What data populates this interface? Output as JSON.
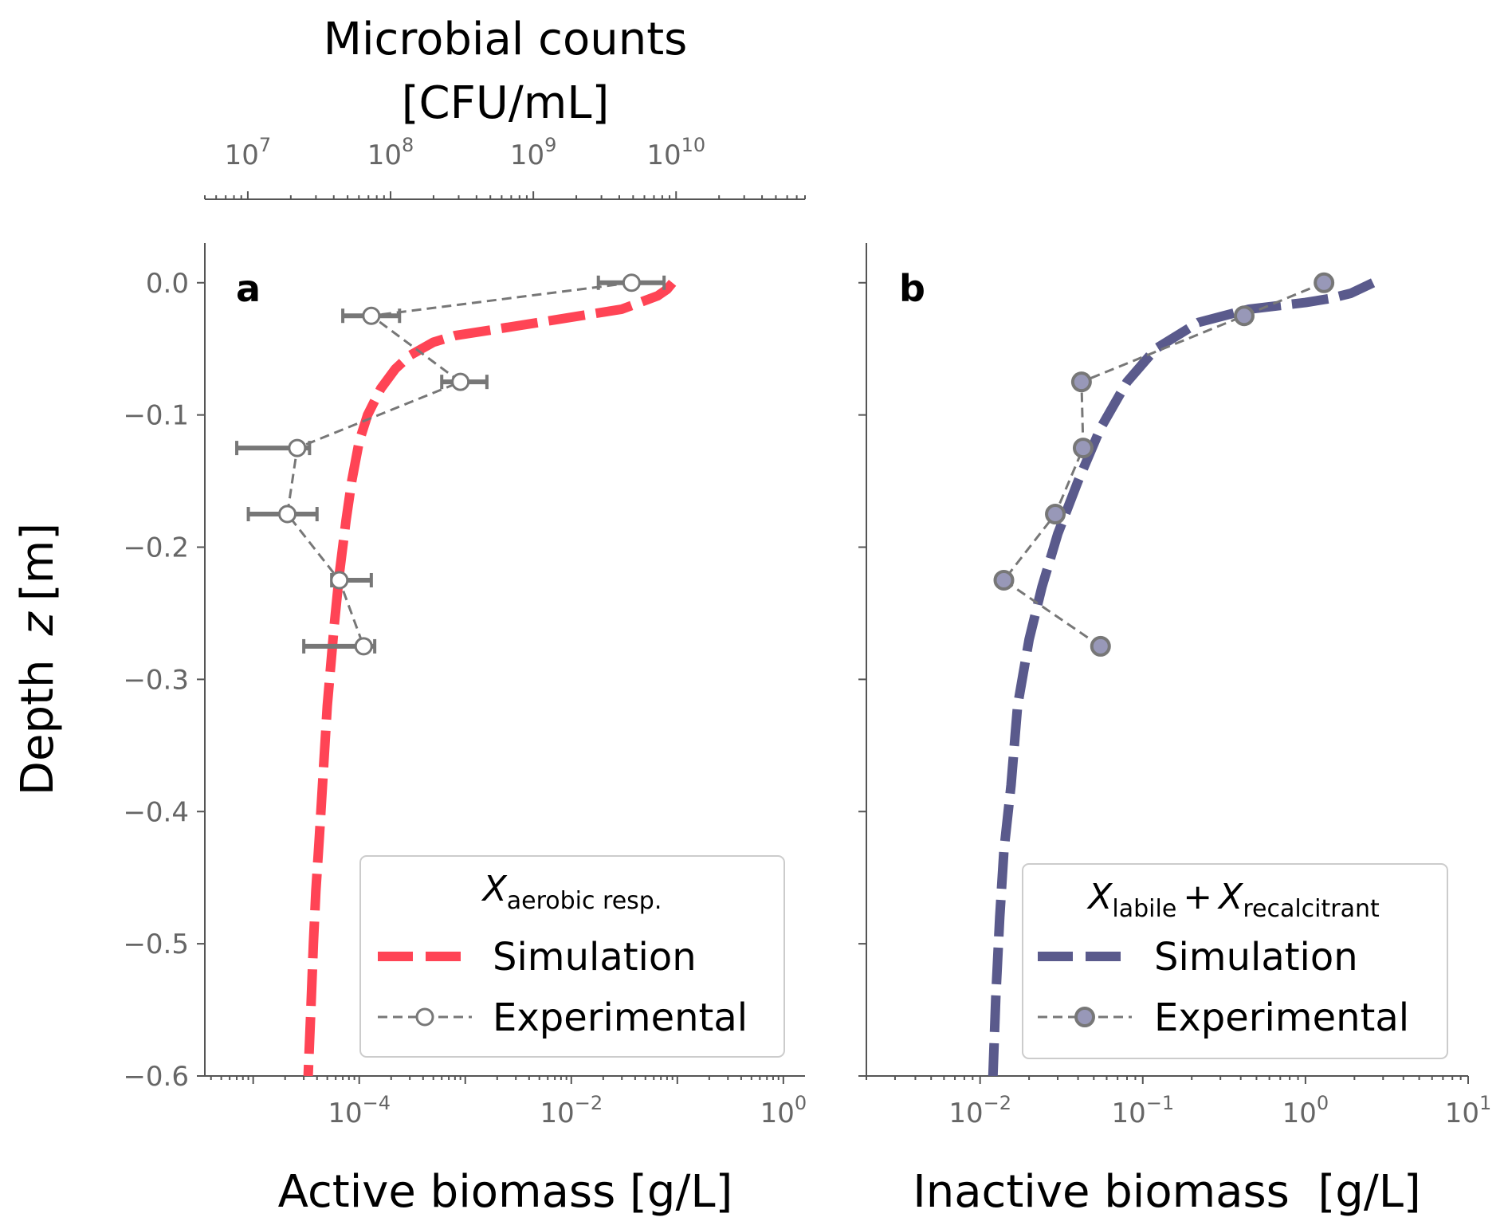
{
  "chart_data": [
    {
      "panel": "a",
      "type": "line",
      "xscale": "log",
      "xlim": [
        3.5e-06,
        1.6
      ],
      "ylim": [
        -0.6,
        0.03
      ],
      "xlabel": "Active biomass [g/L]",
      "ylabel_prefix": "Depth",
      "ylabel_var": "z",
      "ylabel_unit": "[m]",
      "x_ticks": [
        {
          "value": 0.0001,
          "base": "10",
          "exp": "−4"
        },
        {
          "value": 0.01,
          "base": "10",
          "exp": "−2"
        },
        {
          "value": 1,
          "base": "10",
          "exp": "0"
        }
      ],
      "y_ticks": [
        {
          "value": 0.0,
          "label": "0.0"
        },
        {
          "value": -0.1,
          "label": "−0.1"
        },
        {
          "value": -0.2,
          "label": "−0.2"
        },
        {
          "value": -0.3,
          "label": "−0.3"
        },
        {
          "value": -0.4,
          "label": "−0.4"
        },
        {
          "value": -0.5,
          "label": "−0.5"
        },
        {
          "value": -0.6,
          "label": "−0.6"
        }
      ],
      "top_axis": {
        "label_line1": "Microbial counts",
        "label_line2": "[CFU/mL]",
        "xlim": [
          5000000,
          80000000000
        ],
        "ticks": [
          {
            "value": 10000000,
            "base": "10",
            "exp": "7"
          },
          {
            "value": 100000000,
            "base": "10",
            "exp": "8"
          },
          {
            "value": 1000000000,
            "base": "10",
            "exp": "9"
          },
          {
            "value": 10000000000,
            "base": "10",
            "exp": "10"
          }
        ]
      },
      "series": [
        {
          "name": "Simulation",
          "color": "#ff4455",
          "style": "dashed",
          "x": [
            0.09,
            0.08,
            0.065,
            0.03,
            0.005,
            0.002,
            0.0008,
            0.0005,
            0.0003,
            0.00022,
            0.00016,
            0.00012,
            0.0001,
            8.5e-05,
            7.5e-05,
            6.5e-05,
            5.8e-05,
            5e-05,
            4.5e-05,
            4.2e-05,
            3.9e-05,
            3.7e-05,
            3.5e-05,
            3.3e-05
          ],
          "y": [
            0.0,
            -0.005,
            -0.01,
            -0.02,
            -0.03,
            -0.035,
            -0.04,
            -0.045,
            -0.055,
            -0.065,
            -0.08,
            -0.1,
            -0.12,
            -0.15,
            -0.18,
            -0.22,
            -0.26,
            -0.32,
            -0.38,
            -0.42,
            -0.46,
            -0.5,
            -0.55,
            -0.6
          ]
        },
        {
          "name": "Experimental",
          "color": "#777777",
          "style": "dashed-marker-open",
          "x": [
            0.037,
            0.00013,
            0.0009,
            2.6e-05,
            2.1e-05,
            6.5e-05,
            0.00011
          ],
          "y": [
            0.0,
            -0.025,
            -0.075,
            -0.125,
            -0.175,
            -0.225,
            -0.275
          ],
          "xerr_low": [
            0.018,
            7e-05,
            0.0006,
            7e-06,
            9e-06,
            5.5e-05,
            3e-05
          ],
          "xerr_high": [
            0.075,
            0.00024,
            0.0016,
            3.4e-05,
            4e-05,
            0.00013,
            0.00014
          ]
        }
      ],
      "legend": {
        "title_var": "X",
        "title_sub": "aerobic resp.",
        "entries": [
          "Simulation",
          "Experimental"
        ],
        "location": "lower-right"
      }
    },
    {
      "panel": "b",
      "type": "line",
      "xscale": "log",
      "xlim": [
        0.002,
        10
      ],
      "ylim": [
        -0.6,
        0.03
      ],
      "xlabel": "Inactive biomass  [g/L]",
      "x_ticks": [
        {
          "value": 0.01,
          "base": "10",
          "exp": "−2"
        },
        {
          "value": 0.1,
          "base": "10",
          "exp": "−1"
        },
        {
          "value": 1,
          "base": "10",
          "exp": "0"
        },
        {
          "value": 10,
          "base": "10",
          "exp": "1"
        }
      ],
      "series": [
        {
          "name": "Simulation",
          "color": "#5a5a8c",
          "style": "dashed",
          "x": [
            2.6,
            1.9,
            1.4,
            1.0,
            0.45,
            0.22,
            0.12,
            0.08,
            0.055,
            0.04,
            0.03,
            0.024,
            0.02,
            0.017,
            0.0155,
            0.014,
            0.0132,
            0.0125,
            0.012
          ],
          "y": [
            0.0,
            -0.008,
            -0.012,
            -0.015,
            -0.02,
            -0.03,
            -0.05,
            -0.075,
            -0.11,
            -0.15,
            -0.19,
            -0.23,
            -0.27,
            -0.32,
            -0.38,
            -0.43,
            -0.48,
            -0.54,
            -0.6
          ]
        },
        {
          "name": "Experimental",
          "color": "#777777",
          "marker_fill": "#9898b8",
          "style": "dashed-marker-filled",
          "x": [
            1.3,
            0.42,
            0.042,
            0.043,
            0.029,
            0.014,
            0.055
          ],
          "y": [
            0.0,
            -0.025,
            -0.075,
            -0.125,
            -0.175,
            -0.225,
            -0.275
          ]
        }
      ],
      "legend": {
        "title_var1": "X",
        "title_sub1": "labile",
        "title_plus": "+",
        "title_var2": "X",
        "title_sub2": "recalcitrant",
        "entries": [
          "Simulation",
          "Experimental"
        ],
        "location": "lower-right"
      }
    }
  ]
}
